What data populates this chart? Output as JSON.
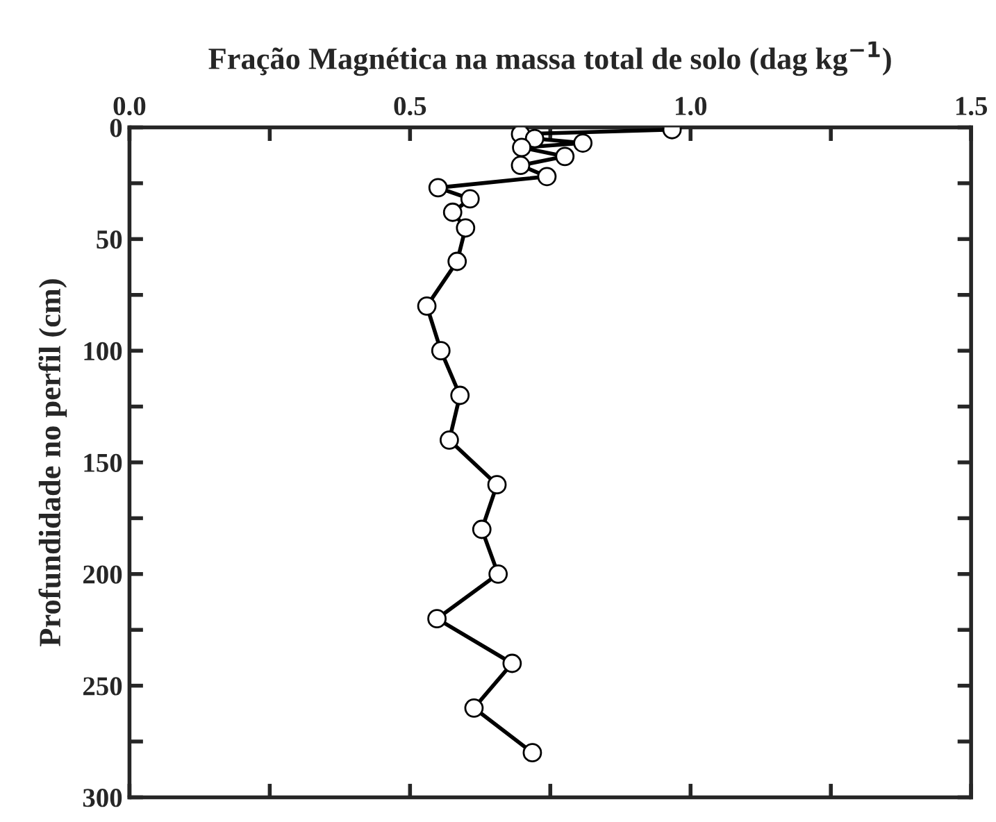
{
  "chart_data": {
    "type": "line",
    "xlabel": "Fração Magnética na massa total de solo (dag kg$^{−1}$)",
    "ylabel": "Profundidade no perfil (cm)",
    "xlim": [
      0,
      1.5
    ],
    "xticks": [
      {
        "value": 0,
        "label": "0.0"
      },
      {
        "value": 0.25,
        "label": null
      },
      0.5,
      {
        "value": 0.75,
        "label": null
      },
      {
        "value": 1,
        "label": "1.0"
      },
      {
        "value": 1.25,
        "label": null
      },
      1.5
    ],
    "ylim": [
      300,
      0
    ],
    "yticks": [
      0,
      {
        "value": 25,
        "label": null
      },
      50,
      {
        "value": 75,
        "label": null
      },
      100,
      {
        "value": 125,
        "label": null
      },
      150,
      {
        "value": 175,
        "label": null
      },
      200,
      {
        "value": 225,
        "label": null
      },
      250,
      {
        "value": 275,
        "label": null
      },
      300
    ],
    "marker": "circle",
    "line_style": "solid",
    "grid": false,
    "legend": false,
    "series": [
      {
        "color": "#000000",
        "x": [
          0.967,
          0.697,
          0.722,
          0.808,
          0.699,
          0.776,
          0.697,
          0.744,
          0.55,
          0.607,
          0.576,
          0.599,
          0.584,
          0.53,
          0.555,
          0.589,
          0.57,
          0.655,
          0.628,
          0.657,
          0.548,
          0.682,
          0.614,
          0.718
        ],
        "values": [
          1,
          3,
          5,
          7,
          9,
          13,
          17,
          22,
          27,
          32,
          38,
          45,
          60,
          80,
          100,
          120,
          140,
          160,
          180,
          200,
          220,
          240,
          260,
          280
        ]
      }
    ]
  }
}
